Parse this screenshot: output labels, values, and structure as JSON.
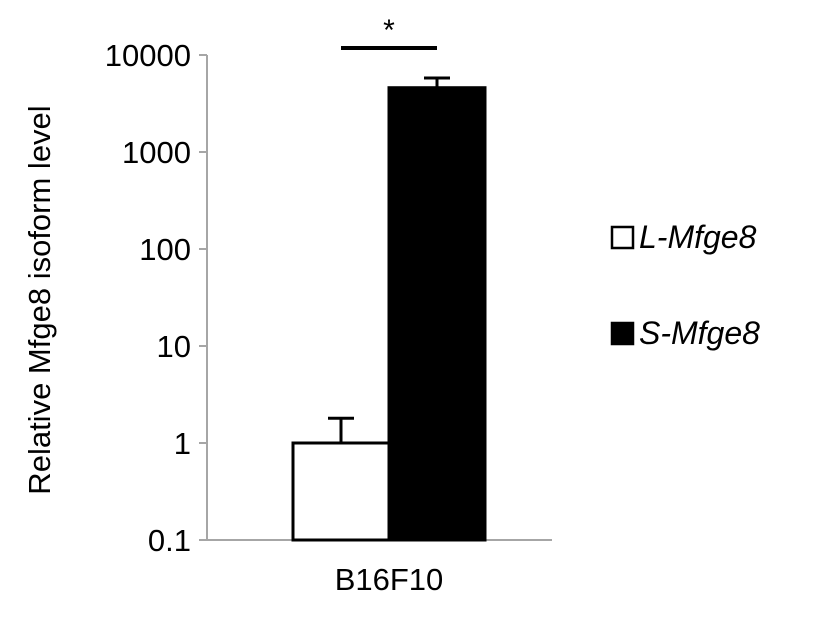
{
  "chart_data": {
    "type": "bar",
    "ylabel": "Relative Mfge8 isoform level",
    "yscale": "log",
    "ylim": [
      0.1,
      10000
    ],
    "yticks": [
      0.1,
      1,
      10,
      100,
      1000,
      10000
    ],
    "ytick_labels": [
      "0.1",
      "1",
      "10",
      "100",
      "1000",
      "10000"
    ],
    "categories": [
      "B16F10"
    ],
    "series": [
      {
        "name": "L-Mfge8",
        "values": [
          1.0
        ],
        "error_upper": [
          1.8
        ],
        "fill": "#ffffff",
        "stroke": "#000000"
      },
      {
        "name": "S-Mfge8",
        "values": [
          4600
        ],
        "error_upper": [
          5800
        ],
        "fill": "#000000",
        "stroke": "#000000"
      }
    ],
    "significance": {
      "label": "*",
      "between": [
        "L-Mfge8",
        "S-Mfge8"
      ]
    },
    "legend_position": "right",
    "grid": false
  }
}
